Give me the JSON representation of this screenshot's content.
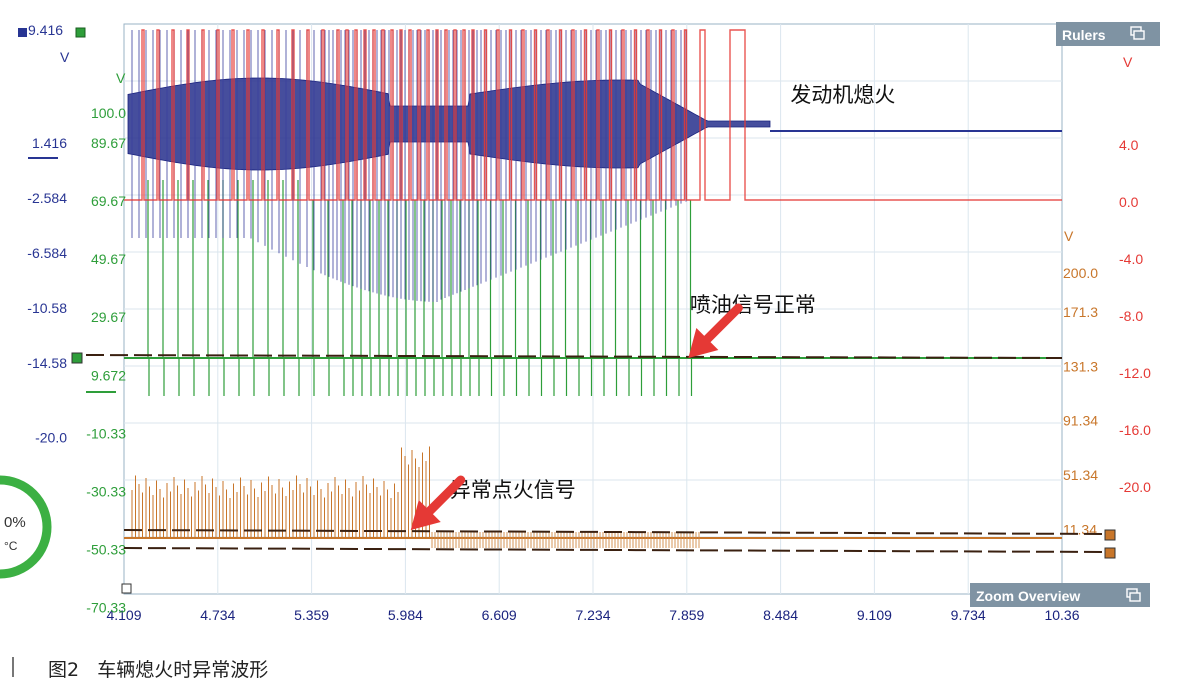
{
  "chart_data": {
    "type": "line",
    "xlim": [
      4.109,
      10.36
    ],
    "x_ticks": [
      "4.109",
      "4.734",
      "5.359",
      "5.984",
      "6.609",
      "7.234",
      "7.859",
      "8.484",
      "9.109",
      "9.734",
      "10.36"
    ],
    "axes": {
      "blue_left": {
        "color": "#283593",
        "unit": "V",
        "top_value": "9.416",
        "ticks": [
          {
            "label": "1.416",
            "value": 1.416
          },
          {
            "label": "-2.584",
            "value": -2.584
          },
          {
            "label": "-6.584",
            "value": -6.584
          },
          {
            "label": "-10.58",
            "value": -10.58
          },
          {
            "label": "-14.58",
            "value": -14.58
          },
          {
            "label": "-20.0",
            "value": -20.0
          }
        ]
      },
      "green_left": {
        "color": "#2e9e3a",
        "unit": "V",
        "ticks": [
          {
            "label": "100.0",
            "value": 100.0
          },
          {
            "label": "89.67",
            "value": 89.67
          },
          {
            "label": "69.67",
            "value": 69.67
          },
          {
            "label": "49.67",
            "value": 49.67
          },
          {
            "label": "29.67",
            "value": 29.67
          },
          {
            "label": "9.672",
            "value": 9.672
          },
          {
            "label": "-10.33",
            "value": -10.33
          },
          {
            "label": "-30.33",
            "value": -30.33
          },
          {
            "label": "-50.33",
            "value": -50.33
          },
          {
            "label": "-70.33",
            "value": -70.33
          }
        ]
      },
      "orange_right": {
        "color": "#c8762a",
        "unit": "V",
        "ticks": [
          {
            "label": "200.0",
            "value": 200.0
          },
          {
            "label": "171.3",
            "value": 171.3
          },
          {
            "label": "131.3",
            "value": 131.3
          },
          {
            "label": "91.34",
            "value": 91.34
          },
          {
            "label": "51.34",
            "value": 51.34
          },
          {
            "label": "11.34",
            "value": 11.34
          }
        ]
      },
      "red_right": {
        "color": "#e53935",
        "unit": "V",
        "ticks": [
          {
            "label": "4.0",
            "value": 4.0
          },
          {
            "label": "0.0",
            "value": 0.0
          },
          {
            "label": "-4.0",
            "value": -4.0
          },
          {
            "label": "-8.0",
            "value": -8.0
          },
          {
            "label": "-12.0",
            "value": -12.0
          },
          {
            "label": "-16.0",
            "value": -16.0
          },
          {
            "label": "-20.0",
            "value": -20.0
          }
        ]
      }
    },
    "series": [
      {
        "key": "blue",
        "color": "#283593",
        "axis": "blue_left"
      },
      {
        "key": "red",
        "color": "#e53935",
        "axis": "red_right"
      },
      {
        "key": "green",
        "color": "#2e9e3a",
        "axis": "green_left"
      },
      {
        "key": "orange",
        "color": "#c8762a",
        "axis": "orange_right"
      }
    ],
    "annotations": [
      {
        "key": "engine_stall",
        "text": "发动机熄火",
        "x": 8.9,
        "channel": "blue"
      },
      {
        "key": "injection_normal",
        "text": "喷油信号正常",
        "x": 8.3,
        "channel": "green"
      },
      {
        "key": "abnormal_ignition",
        "text": "异常点火信号",
        "x": 6.7,
        "channel": "orange"
      }
    ],
    "arrows": [
      {
        "key": "arrow_injection",
        "points_to_x": 7.87,
        "channel": "green"
      },
      {
        "key": "arrow_ignition",
        "points_to_x": 6.02,
        "channel": "orange"
      }
    ],
    "grid": true
  },
  "panels": {
    "rulers": {
      "title": "Rulers",
      "icon": "restore-window-icon"
    },
    "zoom": {
      "title": "Zoom Overview",
      "icon": "restore-window-icon"
    }
  },
  "gauge": {
    "value_text": "0%",
    "unit_text": "°C",
    "color": "#3cb043"
  },
  "caption": {
    "text": "图2   车辆熄火时异常波形"
  }
}
